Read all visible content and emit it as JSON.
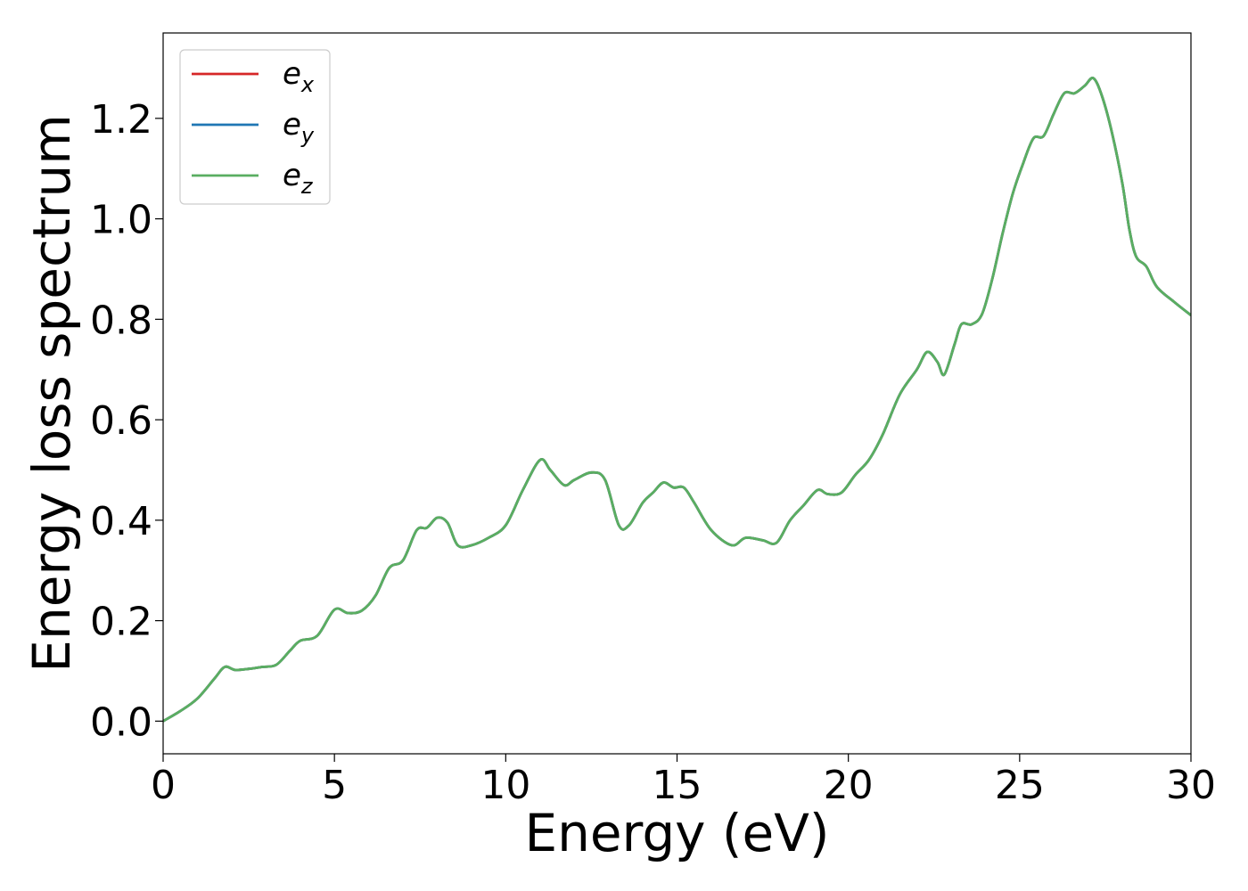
{
  "chart_data": {
    "type": "line",
    "xlabel": "Energy (eV)",
    "ylabel": "Energy loss spectrum",
    "xlim": [
      0,
      30
    ],
    "ylim": [
      -0.065,
      1.37
    ],
    "xticks": [
      0,
      5,
      10,
      15,
      20,
      25,
      30
    ],
    "xtick_labels": [
      "0",
      "5",
      "10",
      "15",
      "20",
      "25",
      "30"
    ],
    "yticks": [
      0.0,
      0.2,
      0.4,
      0.6,
      0.8,
      1.0,
      1.2
    ],
    "ytick_labels": [
      "0.0",
      "0.2",
      "0.4",
      "0.6",
      "0.8",
      "1.0",
      "1.2"
    ],
    "grid": false,
    "legend_position": "top-left",
    "x": [
      0,
      0.5,
      1.0,
      1.5,
      1.8,
      2.1,
      2.5,
      2.9,
      3.3,
      3.7,
      4.0,
      4.5,
      5.0,
      5.4,
      5.8,
      6.2,
      6.6,
      7.0,
      7.4,
      7.7,
      8.0,
      8.3,
      8.6,
      9.0,
      9.5,
      10.0,
      10.5,
      11.0,
      11.3,
      11.7,
      12.0,
      12.5,
      12.9,
      13.3,
      13.6,
      14.0,
      14.3,
      14.6,
      14.9,
      15.2,
      15.5,
      16.0,
      16.6,
      17.0,
      17.5,
      17.9,
      18.3,
      18.7,
      19.1,
      19.4,
      19.8,
      20.2,
      20.6,
      21.0,
      21.5,
      22.0,
      22.3,
      22.6,
      22.8,
      23.1,
      23.3,
      23.6,
      23.9,
      24.2,
      24.5,
      24.8,
      25.1,
      25.4,
      25.7,
      26.0,
      26.3,
      26.6,
      26.9,
      27.15,
      27.4,
      27.7,
      28.0,
      28.2,
      28.4,
      28.7,
      29.0,
      29.5,
      30.0
    ],
    "series": [
      {
        "name": "e_x",
        "color": "#d62728",
        "values": [
          0.0,
          0.02,
          0.045,
          0.085,
          0.108,
          0.102,
          0.104,
          0.108,
          0.112,
          0.14,
          0.16,
          0.17,
          0.222,
          0.215,
          0.22,
          0.25,
          0.305,
          0.32,
          0.38,
          0.385,
          0.405,
          0.395,
          0.35,
          0.35,
          0.365,
          0.39,
          0.46,
          0.52,
          0.5,
          0.47,
          0.48,
          0.495,
          0.48,
          0.39,
          0.39,
          0.435,
          0.455,
          0.475,
          0.465,
          0.465,
          0.435,
          0.38,
          0.35,
          0.365,
          0.36,
          0.355,
          0.4,
          0.43,
          0.46,
          0.452,
          0.455,
          0.49,
          0.52,
          0.57,
          0.65,
          0.7,
          0.735,
          0.715,
          0.69,
          0.75,
          0.79,
          0.79,
          0.81,
          0.88,
          0.97,
          1.05,
          1.11,
          1.16,
          1.165,
          1.21,
          1.25,
          1.25,
          1.265,
          1.28,
          1.245,
          1.17,
          1.07,
          0.98,
          0.925,
          0.905,
          0.865,
          0.835,
          0.808
        ]
      },
      {
        "name": "e_y",
        "color": "#1f77b4",
        "values": [
          0.0,
          0.02,
          0.045,
          0.085,
          0.108,
          0.102,
          0.104,
          0.108,
          0.112,
          0.14,
          0.16,
          0.17,
          0.222,
          0.215,
          0.22,
          0.25,
          0.305,
          0.32,
          0.38,
          0.385,
          0.405,
          0.395,
          0.35,
          0.35,
          0.365,
          0.39,
          0.46,
          0.52,
          0.5,
          0.47,
          0.48,
          0.495,
          0.48,
          0.39,
          0.39,
          0.435,
          0.455,
          0.475,
          0.465,
          0.465,
          0.435,
          0.38,
          0.35,
          0.365,
          0.36,
          0.355,
          0.4,
          0.43,
          0.46,
          0.452,
          0.455,
          0.49,
          0.52,
          0.57,
          0.65,
          0.7,
          0.735,
          0.715,
          0.69,
          0.75,
          0.79,
          0.79,
          0.81,
          0.88,
          0.97,
          1.05,
          1.11,
          1.16,
          1.165,
          1.21,
          1.25,
          1.25,
          1.265,
          1.28,
          1.245,
          1.17,
          1.07,
          0.98,
          0.925,
          0.905,
          0.865,
          0.835,
          0.808
        ]
      },
      {
        "name": "e_z",
        "color": "#5aae61",
        "values": [
          0.0,
          0.02,
          0.045,
          0.085,
          0.108,
          0.102,
          0.104,
          0.108,
          0.112,
          0.14,
          0.16,
          0.17,
          0.222,
          0.215,
          0.22,
          0.25,
          0.305,
          0.32,
          0.38,
          0.385,
          0.405,
          0.395,
          0.35,
          0.35,
          0.365,
          0.39,
          0.46,
          0.52,
          0.5,
          0.47,
          0.48,
          0.495,
          0.48,
          0.39,
          0.39,
          0.435,
          0.455,
          0.475,
          0.465,
          0.465,
          0.435,
          0.38,
          0.35,
          0.365,
          0.36,
          0.355,
          0.4,
          0.43,
          0.46,
          0.452,
          0.455,
          0.49,
          0.52,
          0.57,
          0.65,
          0.7,
          0.735,
          0.715,
          0.69,
          0.75,
          0.79,
          0.79,
          0.81,
          0.88,
          0.97,
          1.05,
          1.11,
          1.16,
          1.165,
          1.21,
          1.25,
          1.25,
          1.265,
          1.28,
          1.245,
          1.17,
          1.07,
          0.98,
          0.925,
          0.905,
          0.865,
          0.835,
          0.808
        ]
      }
    ],
    "legend": [
      {
        "base": "e",
        "sub": "x",
        "color": "#d62728"
      },
      {
        "base": "e",
        "sub": "y",
        "color": "#1f77b4"
      },
      {
        "base": "e",
        "sub": "z",
        "color": "#5aae61"
      }
    ]
  }
}
